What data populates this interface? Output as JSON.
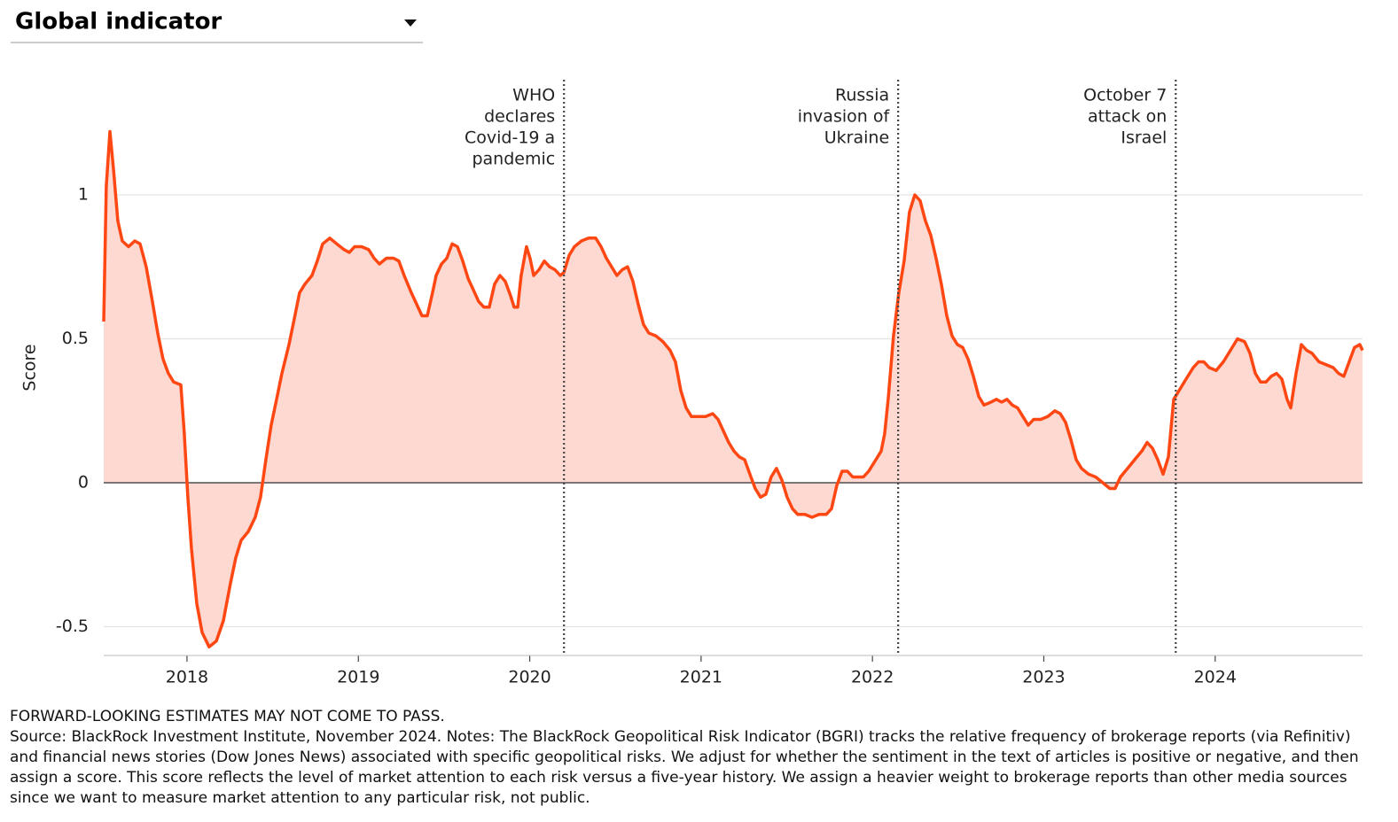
{
  "chart_data": {
    "type": "area-line",
    "title": "Global indicator",
    "ylabel": "Score",
    "color": "#ff4713",
    "fill_color": "#fdd9d1",
    "grid": true,
    "xlim": [
      2017.514,
      2024.86
    ],
    "xticks": [
      2018,
      2019,
      2020,
      2021,
      2022,
      2023,
      2024
    ],
    "ylim": [
      -0.6,
      1.4
    ],
    "yticks": [
      -0.5,
      0,
      0.5,
      1
    ],
    "annotations": [
      {
        "x": 2020.2,
        "lines": [
          "WHO",
          "declares",
          "Covid-19 a",
          "pandemic"
        ]
      },
      {
        "x": 2022.15,
        "lines": [
          "Russia",
          "invasion of",
          "Ukraine"
        ]
      },
      {
        "x": 2023.77,
        "lines": [
          "October 7",
          "attack on",
          "Israel"
        ]
      }
    ],
    "x": [
      2017.514,
      2017.529,
      2017.55,
      2017.571,
      2017.596,
      2017.622,
      2017.659,
      2017.695,
      2017.726,
      2017.762,
      2017.798,
      2017.829,
      2017.86,
      2017.891,
      2017.922,
      2017.964,
      2017.984,
      2018.005,
      2018.026,
      2018.057,
      2018.088,
      2018.129,
      2018.171,
      2018.212,
      2018.253,
      2018.285,
      2018.316,
      2018.357,
      2018.398,
      2018.429,
      2018.46,
      2018.491,
      2018.523,
      2018.554,
      2018.595,
      2018.626,
      2018.657,
      2018.688,
      2018.729,
      2018.76,
      2018.792,
      2018.833,
      2018.874,
      2018.916,
      2018.947,
      2018.978,
      2019.019,
      2019.06,
      2019.092,
      2019.123,
      2019.164,
      2019.205,
      2019.236,
      2019.267,
      2019.309,
      2019.34,
      2019.371,
      2019.402,
      2019.433,
      2019.454,
      2019.485,
      2019.516,
      2019.547,
      2019.578,
      2019.609,
      2019.64,
      2019.671,
      2019.702,
      2019.733,
      2019.764,
      2019.795,
      2019.826,
      2019.857,
      2019.888,
      2019.909,
      2019.93,
      2019.95,
      2019.981,
      2020.002,
      2020.023,
      2020.054,
      2020.085,
      2020.116,
      2020.147,
      2020.178,
      2020.199,
      2020.23,
      2020.261,
      2020.302,
      2020.344,
      2020.385,
      2020.416,
      2020.447,
      2020.478,
      2020.509,
      2020.54,
      2020.571,
      2020.602,
      2020.633,
      2020.664,
      2020.695,
      2020.737,
      2020.778,
      2020.819,
      2020.85,
      2020.882,
      2020.913,
      2020.944,
      2020.985,
      2021.026,
      2021.068,
      2021.099,
      2021.13,
      2021.161,
      2021.192,
      2021.223,
      2021.254,
      2021.285,
      2021.316,
      2021.347,
      2021.378,
      2021.409,
      2021.44,
      2021.471,
      2021.502,
      2021.533,
      2021.564,
      2021.606,
      2021.647,
      2021.689,
      2021.73,
      2021.761,
      2021.792,
      2021.823,
      2021.854,
      2021.885,
      2021.916,
      2021.947,
      2021.978,
      2022.02,
      2022.051,
      2022.071,
      2022.092,
      2022.123,
      2022.154,
      2022.185,
      2022.216,
      2022.247,
      2022.278,
      2022.309,
      2022.34,
      2022.371,
      2022.402,
      2022.434,
      2022.465,
      2022.496,
      2022.527,
      2022.558,
      2022.589,
      2022.62,
      2022.651,
      2022.692,
      2022.723,
      2022.754,
      2022.785,
      2022.816,
      2022.847,
      2022.878,
      2022.909,
      2022.94,
      2022.982,
      2023.023,
      2023.065,
      2023.096,
      2023.127,
      2023.158,
      2023.189,
      2023.22,
      2023.261,
      2023.303,
      2023.344,
      2023.385,
      2023.416,
      2023.447,
      2023.489,
      2023.53,
      2023.572,
      2023.603,
      2023.634,
      2023.665,
      2023.696,
      2023.727,
      2023.758,
      2023.789,
      2023.83,
      2023.872,
      2023.903,
      2023.934,
      2023.965,
      2024.006,
      2024.048,
      2024.089,
      2024.13,
      2024.172,
      2024.203,
      2024.234,
      2024.265,
      2024.296,
      2024.327,
      2024.358,
      2024.389,
      2024.42,
      2024.441,
      2024.472,
      2024.503,
      2024.534,
      2024.565,
      2024.606,
      2024.648,
      2024.689,
      2024.72,
      2024.751,
      2024.782,
      2024.813,
      2024.844,
      2024.86
    ],
    "values": [
      0.56,
      1.03,
      1.22,
      1.09,
      0.91,
      0.84,
      0.82,
      0.84,
      0.83,
      0.75,
      0.63,
      0.52,
      0.43,
      0.38,
      0.35,
      0.34,
      0.17,
      -0.05,
      -0.23,
      -0.42,
      -0.52,
      -0.57,
      -0.55,
      -0.48,
      -0.35,
      -0.26,
      -0.2,
      -0.17,
      -0.12,
      -0.05,
      0.08,
      0.2,
      0.29,
      0.38,
      0.48,
      0.57,
      0.66,
      0.69,
      0.72,
      0.77,
      0.83,
      0.85,
      0.83,
      0.81,
      0.8,
      0.82,
      0.82,
      0.81,
      0.78,
      0.76,
      0.78,
      0.78,
      0.77,
      0.72,
      0.66,
      0.62,
      0.58,
      0.58,
      0.66,
      0.72,
      0.76,
      0.78,
      0.83,
      0.82,
      0.77,
      0.71,
      0.67,
      0.63,
      0.61,
      0.61,
      0.69,
      0.72,
      0.7,
      0.65,
      0.61,
      0.61,
      0.72,
      0.82,
      0.78,
      0.72,
      0.74,
      0.77,
      0.75,
      0.74,
      0.72,
      0.73,
      0.79,
      0.82,
      0.84,
      0.85,
      0.85,
      0.82,
      0.78,
      0.75,
      0.72,
      0.74,
      0.75,
      0.7,
      0.62,
      0.55,
      0.52,
      0.51,
      0.49,
      0.46,
      0.42,
      0.32,
      0.26,
      0.23,
      0.23,
      0.23,
      0.24,
      0.22,
      0.18,
      0.14,
      0.11,
      0.09,
      0.08,
      0.03,
      -0.02,
      -0.05,
      -0.04,
      0.02,
      0.05,
      0.01,
      -0.05,
      -0.09,
      -0.11,
      -0.11,
      -0.12,
      -0.11,
      -0.11,
      -0.09,
      -0.01,
      0.04,
      0.04,
      0.02,
      0.02,
      0.02,
      0.04,
      0.08,
      0.11,
      0.17,
      0.29,
      0.51,
      0.66,
      0.77,
      0.94,
      1.0,
      0.98,
      0.91,
      0.86,
      0.78,
      0.69,
      0.58,
      0.51,
      0.48,
      0.47,
      0.43,
      0.37,
      0.3,
      0.27,
      0.28,
      0.29,
      0.28,
      0.29,
      0.27,
      0.26,
      0.23,
      0.2,
      0.22,
      0.22,
      0.23,
      0.25,
      0.24,
      0.21,
      0.15,
      0.08,
      0.05,
      0.03,
      0.02,
      0.0,
      -0.02,
      -0.02,
      0.02,
      0.05,
      0.08,
      0.11,
      0.14,
      0.12,
      0.08,
      0.03,
      0.09,
      0.29,
      0.32,
      0.36,
      0.4,
      0.42,
      0.42,
      0.4,
      0.39,
      0.42,
      0.46,
      0.5,
      0.49,
      0.45,
      0.38,
      0.35,
      0.35,
      0.37,
      0.38,
      0.36,
      0.29,
      0.26,
      0.38,
      0.48,
      0.46,
      0.45,
      0.42,
      0.41,
      0.4,
      0.38,
      0.37,
      0.42,
      0.47,
      0.48,
      0.46
    ]
  },
  "footer": {
    "disclaimer": "FORWARD-LOOKING ESTIMATES MAY NOT COME TO PASS.",
    "source": "Source: BlackRock Investment Institute, November 2024. Notes: The BlackRock Geopolitical Risk Indicator (BGRI) tracks the relative frequency of brokerage reports (via Refinitiv) and financial news stories (Dow Jones News) associated with specific geopolitical risks. We adjust for whether the sentiment in the text of articles is positive or negative, and then assign a score. This score reflects the level of market attention to each risk versus a five-year history. We assign a heavier weight to brokerage reports than other media sources since we want to measure market attention to any particular risk, not public."
  }
}
